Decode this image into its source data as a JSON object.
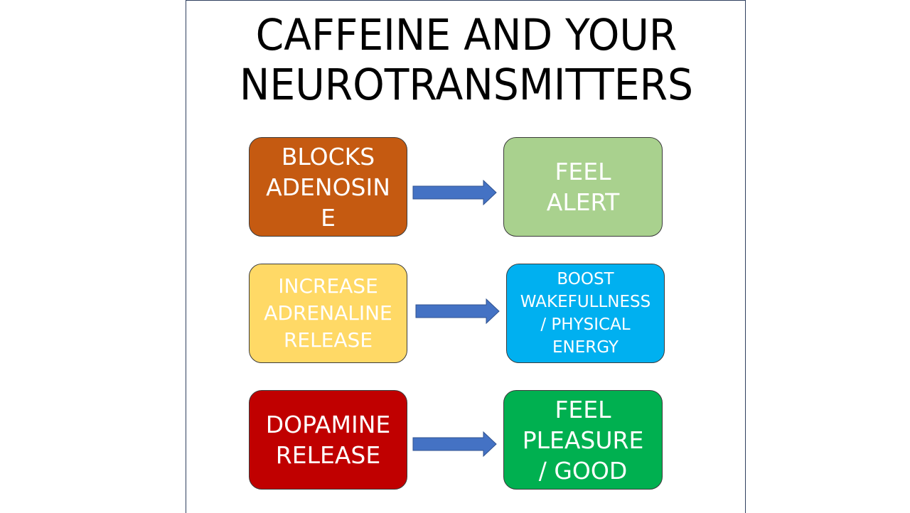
{
  "title": {
    "line1": "CAFFEINE AND YOUR",
    "line2": "NEUROTRANSMITTERS"
  },
  "rows": [
    {
      "cause": {
        "text": "BLOCKS\nADENOSIN\nE",
        "color": "#c55a11"
      },
      "effect": {
        "text": "FEEL\nALERT",
        "color": "#a9d18e"
      }
    },
    {
      "cause": {
        "text": "INCREASE\nADRENALINE\nRELEASE",
        "color": "#ffd966"
      },
      "effect": {
        "text": "BOOST\nWAKEFULLNESS\n/ PHYSICAL\nENERGY",
        "color": "#00b0f0"
      }
    },
    {
      "cause": {
        "text": "DOPAMINE\nRELEASE",
        "color": "#c00000"
      },
      "effect": {
        "text": "FEEL\nPLEASURE\n/ GOOD",
        "color": "#00b050"
      }
    }
  ],
  "colors": {
    "arrow_fill": "#4472c4",
    "arrow_stroke": "#2f528f",
    "box_border": "#3b3b3b",
    "slide_border": "#2f3f5f"
  }
}
